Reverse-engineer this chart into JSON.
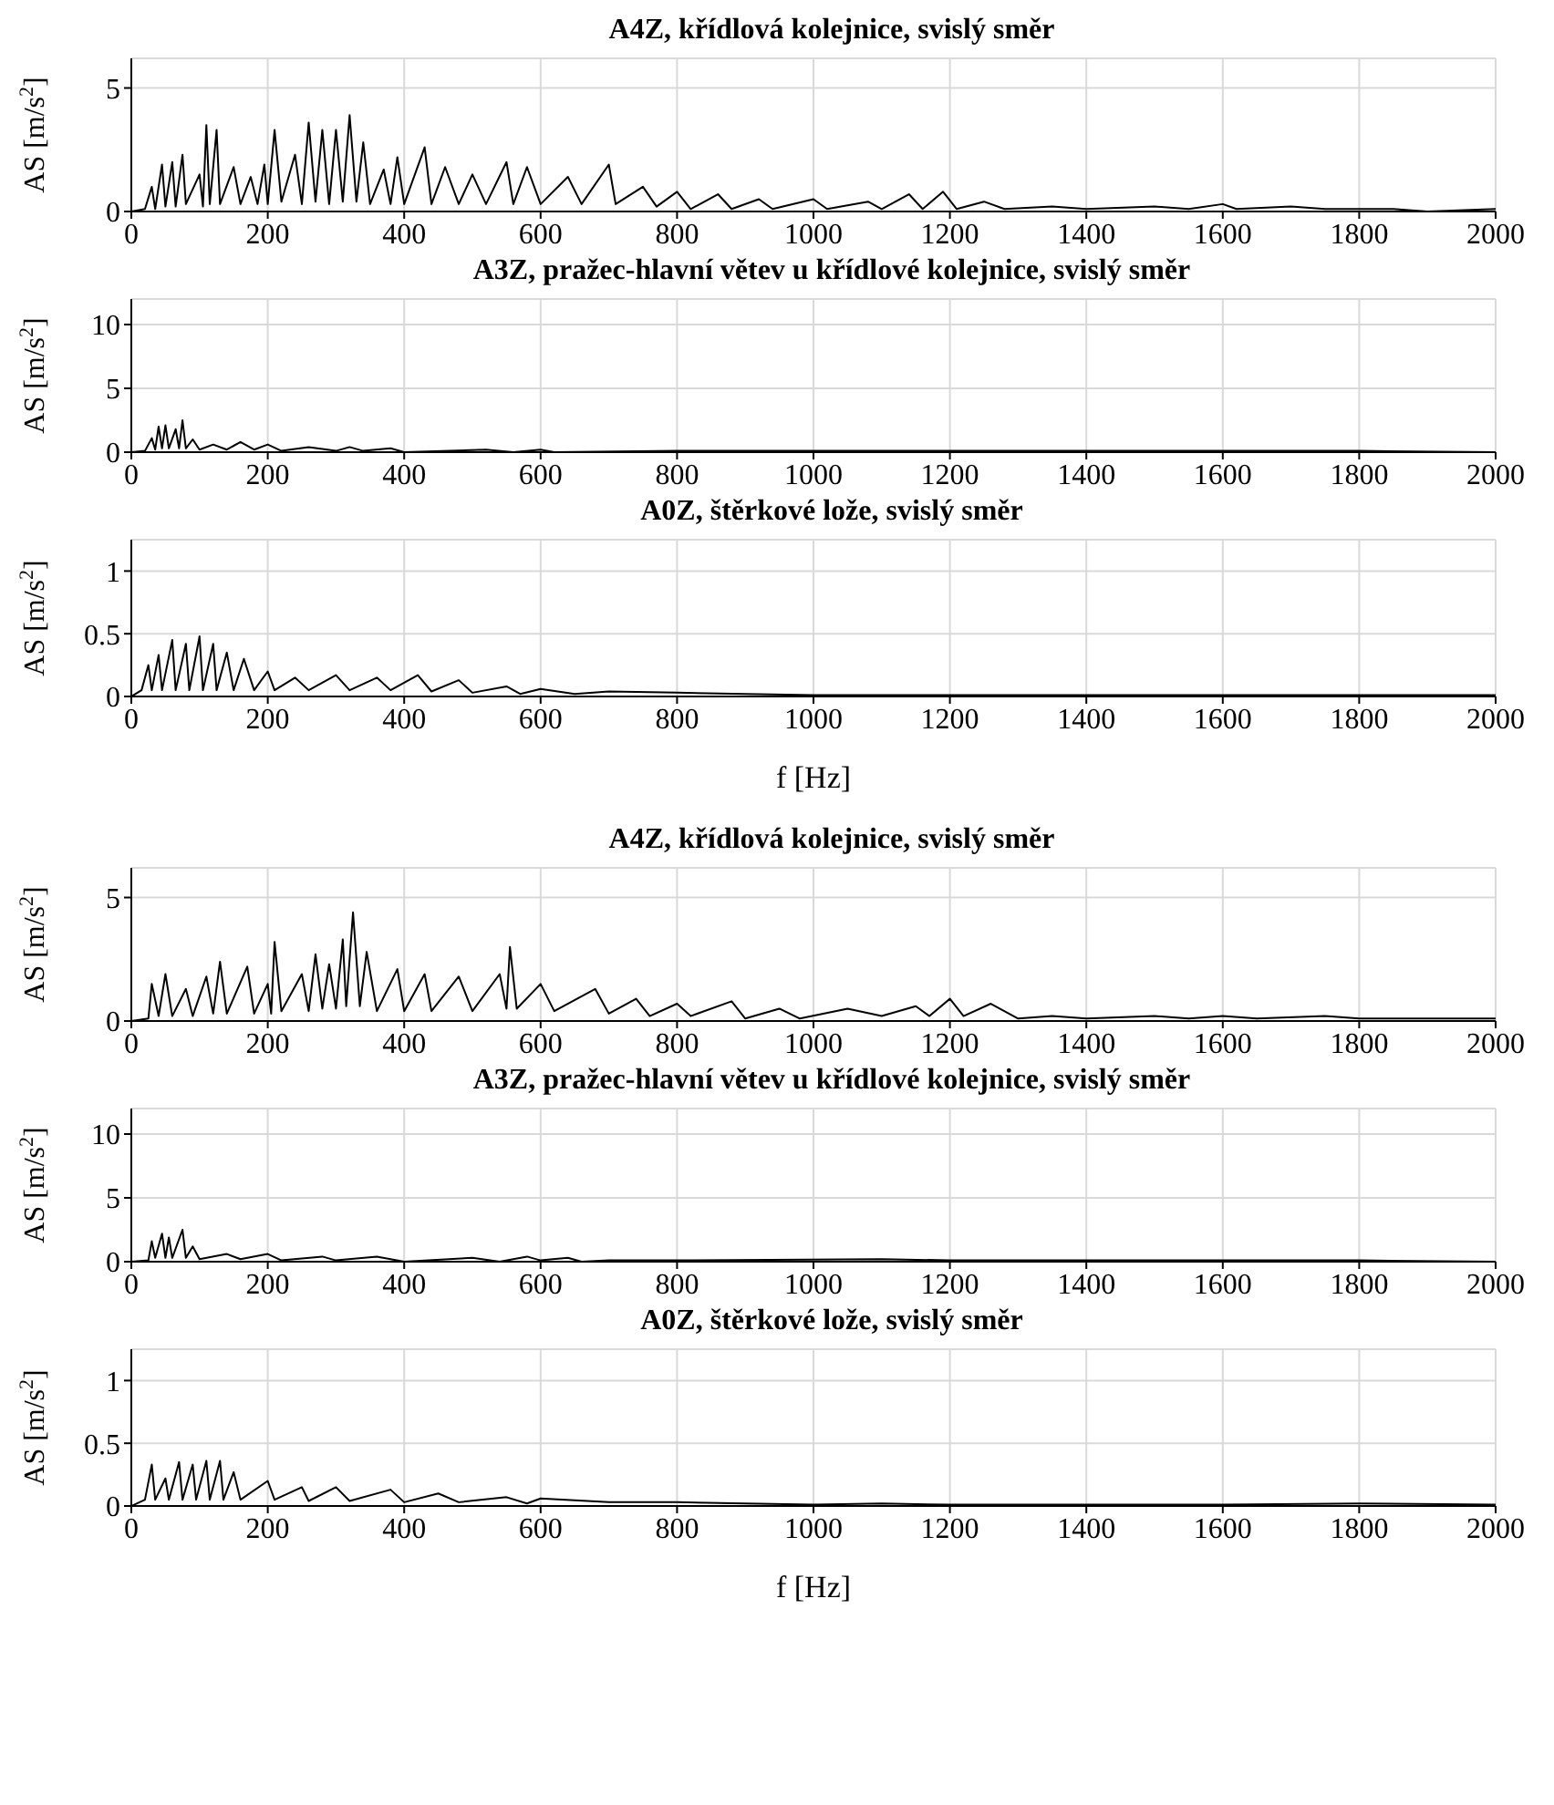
{
  "chart_data": [
    {
      "type": "line",
      "title": "A4Z, křídlová kolejnice, svislý směr",
      "ylabel": "AS [m/s$^{2}$]",
      "xlim": [
        0,
        2000
      ],
      "xticks": [
        0,
        200,
        400,
        600,
        800,
        1000,
        1200,
        1400,
        1600,
        1800,
        2000
      ],
      "ylim": [
        0,
        6.2
      ],
      "yticks": [
        0,
        5
      ],
      "grid": true,
      "marker": "none",
      "series": [
        {
          "color": "#000000",
          "x": [
            0,
            20,
            30,
            35,
            45,
            50,
            60,
            65,
            75,
            80,
            100,
            105,
            110,
            115,
            125,
            130,
            150,
            160,
            175,
            185,
            195,
            200,
            210,
            220,
            240,
            250,
            260,
            270,
            280,
            290,
            300,
            310,
            320,
            330,
            340,
            350,
            370,
            380,
            390,
            400,
            430,
            440,
            460,
            480,
            500,
            520,
            550,
            560,
            580,
            600,
            640,
            660,
            700,
            710,
            750,
            770,
            800,
            820,
            860,
            880,
            920,
            940,
            1000,
            1020,
            1080,
            1100,
            1140,
            1160,
            1190,
            1210,
            1250,
            1280,
            1350,
            1400,
            1500,
            1550,
            1600,
            1620,
            1700,
            1750,
            1850,
            1900,
            2000
          ],
          "values": [
            0,
            0.1,
            1.0,
            0.1,
            1.9,
            0.2,
            2.0,
            0.2,
            2.3,
            0.3,
            1.5,
            0.2,
            3.5,
            0.3,
            3.3,
            0.3,
            1.8,
            0.3,
            1.4,
            0.3,
            1.9,
            0.3,
            3.3,
            0.4,
            2.3,
            0.3,
            3.6,
            0.4,
            3.3,
            0.3,
            3.3,
            0.4,
            3.9,
            0.4,
            2.8,
            0.3,
            1.7,
            0.3,
            2.2,
            0.3,
            2.6,
            0.3,
            1.8,
            0.3,
            1.5,
            0.3,
            2.0,
            0.3,
            1.8,
            0.3,
            1.4,
            0.3,
            1.9,
            0.3,
            1.0,
            0.2,
            0.8,
            0.1,
            0.7,
            0.1,
            0.5,
            0.1,
            0.5,
            0.1,
            0.4,
            0.1,
            0.7,
            0.1,
            0.8,
            0.1,
            0.4,
            0.1,
            0.2,
            0.1,
            0.2,
            0.1,
            0.3,
            0.1,
            0.2,
            0.1,
            0.1,
            0,
            0.1
          ]
        }
      ]
    },
    {
      "type": "line",
      "title": "A3Z, pražec-hlavní větev u křídlové kolejnice, svislý směr",
      "ylabel": "AS [m/s$^{2}$]",
      "xlim": [
        0,
        2000
      ],
      "xticks": [
        0,
        200,
        400,
        600,
        800,
        1000,
        1200,
        1400,
        1600,
        1800,
        2000
      ],
      "ylim": [
        0,
        12
      ],
      "yticks": [
        0,
        5,
        10
      ],
      "grid": true,
      "marker": "none",
      "series": [
        {
          "color": "#000000",
          "x": [
            0,
            20,
            30,
            35,
            40,
            45,
            50,
            55,
            65,
            70,
            75,
            80,
            90,
            100,
            120,
            140,
            160,
            180,
            200,
            220,
            260,
            300,
            320,
            340,
            380,
            400,
            520,
            560,
            600,
            620,
            800,
            1000,
            1200,
            1400,
            1600,
            1800,
            2000
          ],
          "values": [
            0,
            0.1,
            1.1,
            0.2,
            2.0,
            0.3,
            2.1,
            0.3,
            1.8,
            0.3,
            2.5,
            0.3,
            1.0,
            0.2,
            0.6,
            0.2,
            0.8,
            0.2,
            0.6,
            0.1,
            0.4,
            0.1,
            0.4,
            0.1,
            0.3,
            0,
            0.2,
            0,
            0.2,
            0,
            0.1,
            0.1,
            0.1,
            0.1,
            0.1,
            0.1,
            0
          ]
        }
      ]
    },
    {
      "type": "line",
      "title": "A0Z, štěrkové lože, svislý směr",
      "xlabel": "f [Hz]",
      "ylabel": "AS [m/s$^{2}$]",
      "xlim": [
        0,
        2000
      ],
      "xticks": [
        0,
        200,
        400,
        600,
        800,
        1000,
        1200,
        1400,
        1600,
        1800,
        2000
      ],
      "ylim": [
        0,
        1.25
      ],
      "yticks": [
        0,
        0.5,
        1
      ],
      "grid": true,
      "marker": "none",
      "series": [
        {
          "color": "#000000",
          "x": [
            0,
            15,
            25,
            30,
            40,
            45,
            60,
            65,
            80,
            85,
            100,
            105,
            120,
            125,
            140,
            150,
            165,
            180,
            200,
            210,
            240,
            260,
            300,
            320,
            360,
            380,
            420,
            440,
            480,
            500,
            550,
            570,
            600,
            650,
            700,
            800,
            900,
            1000,
            1200,
            1400,
            1600,
            1800,
            2000
          ],
          "values": [
            0,
            0.05,
            0.25,
            0.05,
            0.33,
            0.05,
            0.45,
            0.05,
            0.42,
            0.05,
            0.48,
            0.05,
            0.42,
            0.05,
            0.35,
            0.05,
            0.3,
            0.05,
            0.2,
            0.05,
            0.15,
            0.05,
            0.17,
            0.05,
            0.15,
            0.05,
            0.17,
            0.04,
            0.13,
            0.03,
            0.08,
            0.02,
            0.06,
            0.02,
            0.04,
            0.03,
            0.02,
            0.01,
            0.01,
            0.01,
            0.01,
            0.01,
            0.01
          ]
        }
      ]
    },
    {
      "type": "line",
      "title": "A4Z, křídlová kolejnice, svislý směr",
      "ylabel": "AS [m/s$^{2}$]",
      "xlim": [
        0,
        2000
      ],
      "xticks": [
        0,
        200,
        400,
        600,
        800,
        1000,
        1200,
        1400,
        1600,
        1800,
        2000
      ],
      "ylim": [
        0,
        6.2
      ],
      "yticks": [
        0,
        5
      ],
      "grid": true,
      "marker": "none",
      "series": [
        {
          "color": "#000000",
          "x": [
            0,
            25,
            30,
            40,
            50,
            60,
            80,
            90,
            110,
            120,
            130,
            140,
            170,
            180,
            200,
            205,
            210,
            220,
            250,
            260,
            270,
            280,
            290,
            300,
            310,
            315,
            325,
            335,
            345,
            360,
            390,
            400,
            430,
            440,
            480,
            500,
            540,
            550,
            555,
            565,
            600,
            620,
            680,
            700,
            740,
            760,
            800,
            820,
            880,
            900,
            950,
            980,
            1050,
            1100,
            1150,
            1170,
            1200,
            1220,
            1260,
            1300,
            1350,
            1400,
            1500,
            1550,
            1600,
            1650,
            1750,
            1800,
            1900,
            2000
          ],
          "values": [
            0,
            0.1,
            1.5,
            0.2,
            1.9,
            0.2,
            1.3,
            0.2,
            1.8,
            0.3,
            2.4,
            0.3,
            2.2,
            0.3,
            1.5,
            0.3,
            3.2,
            0.4,
            1.9,
            0.4,
            2.7,
            0.5,
            2.3,
            0.5,
            3.3,
            0.6,
            4.4,
            0.6,
            2.8,
            0.4,
            2.1,
            0.4,
            1.9,
            0.4,
            1.8,
            0.4,
            1.9,
            0.5,
            3.0,
            0.5,
            1.5,
            0.4,
            1.3,
            0.3,
            0.9,
            0.2,
            0.7,
            0.2,
            0.8,
            0.1,
            0.5,
            0.1,
            0.5,
            0.2,
            0.6,
            0.2,
            0.9,
            0.2,
            0.7,
            0.1,
            0.2,
            0.1,
            0.2,
            0.1,
            0.2,
            0.1,
            0.2,
            0.1,
            0.1,
            0.1
          ]
        }
      ]
    },
    {
      "type": "line",
      "title": "A3Z, pražec-hlavní větev u křídlové kolejnice, svislý směr",
      "ylabel": "AS [m/s$^{2}$]",
      "xlim": [
        0,
        2000
      ],
      "xticks": [
        0,
        200,
        400,
        600,
        800,
        1000,
        1200,
        1400,
        1600,
        1800,
        2000
      ],
      "ylim": [
        0,
        12
      ],
      "yticks": [
        0,
        5,
        10
      ],
      "grid": true,
      "marker": "none",
      "series": [
        {
          "color": "#000000",
          "x": [
            0,
            25,
            30,
            35,
            45,
            50,
            55,
            60,
            75,
            80,
            90,
            100,
            140,
            160,
            200,
            220,
            280,
            300,
            360,
            400,
            500,
            540,
            580,
            600,
            640,
            660,
            700,
            800,
            1100,
            1200,
            1400,
            1600,
            1800,
            2000
          ],
          "values": [
            0,
            0.1,
            1.6,
            0.3,
            2.2,
            0.3,
            1.9,
            0.3,
            2.5,
            0.3,
            1.2,
            0.2,
            0.6,
            0.2,
            0.6,
            0.1,
            0.4,
            0.1,
            0.4,
            0,
            0.3,
            0,
            0.4,
            0.1,
            0.3,
            0,
            0.1,
            0.1,
            0.2,
            0.1,
            0.1,
            0.1,
            0.1,
            0
          ]
        }
      ]
    },
    {
      "type": "line",
      "title": "A0Z, štěrkové lože, svislý směr",
      "xlabel": "f [Hz]",
      "ylabel": "AS [m/s$^{2}$]",
      "xlim": [
        0,
        2000
      ],
      "xticks": [
        0,
        200,
        400,
        600,
        800,
        1000,
        1200,
        1400,
        1600,
        1800,
        2000
      ],
      "ylim": [
        0,
        1.25
      ],
      "yticks": [
        0,
        0.5,
        1
      ],
      "grid": true,
      "marker": "none",
      "series": [
        {
          "color": "#000000",
          "x": [
            0,
            20,
            30,
            35,
            50,
            55,
            70,
            75,
            90,
            95,
            110,
            115,
            130,
            135,
            150,
            160,
            200,
            210,
            250,
            260,
            300,
            320,
            380,
            400,
            450,
            480,
            550,
            580,
            600,
            700,
            800,
            900,
            1000,
            1100,
            1200,
            1500,
            1600,
            1800,
            2000
          ],
          "values": [
            0,
            0.05,
            0.33,
            0.05,
            0.22,
            0.05,
            0.35,
            0.05,
            0.33,
            0.05,
            0.36,
            0.05,
            0.36,
            0.05,
            0.27,
            0.05,
            0.2,
            0.05,
            0.15,
            0.04,
            0.15,
            0.04,
            0.13,
            0.03,
            0.1,
            0.03,
            0.07,
            0.02,
            0.06,
            0.03,
            0.03,
            0.02,
            0.01,
            0.02,
            0.01,
            0.01,
            0.01,
            0.02,
            0.01
          ]
        }
      ]
    }
  ]
}
